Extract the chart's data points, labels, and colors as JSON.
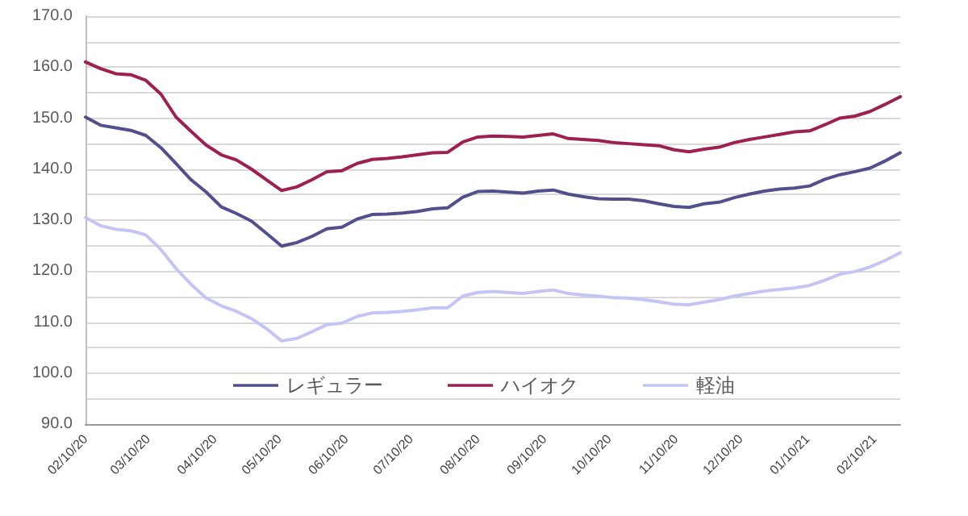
{
  "chart_data": {
    "type": "line",
    "x": [
      "2020-02-10",
      "2020-02-17",
      "2020-02-24",
      "2020-03-02",
      "2020-03-09",
      "2020-03-16",
      "2020-03-23",
      "2020-03-30",
      "2020-04-06",
      "2020-04-13",
      "2020-04-20",
      "2020-04-27",
      "2020-05-04",
      "2020-05-11",
      "2020-05-18",
      "2020-05-25",
      "2020-06-01",
      "2020-06-08",
      "2020-06-15",
      "2020-06-22",
      "2020-06-29",
      "2020-07-06",
      "2020-07-13",
      "2020-07-20",
      "2020-07-27",
      "2020-08-03",
      "2020-08-10",
      "2020-08-17",
      "2020-08-24",
      "2020-08-31",
      "2020-09-07",
      "2020-09-14",
      "2020-09-21",
      "2020-09-28",
      "2020-10-05",
      "2020-10-12",
      "2020-10-19",
      "2020-10-26",
      "2020-11-02",
      "2020-11-09",
      "2020-11-16",
      "2020-11-23",
      "2020-11-30",
      "2020-12-07",
      "2020-12-14",
      "2020-12-21",
      "2020-12-28",
      "2021-01-04",
      "2021-01-11",
      "2021-01-18",
      "2021-01-25",
      "2021-02-01",
      "2021-02-08",
      "2021-02-15",
      "2021-02-22"
    ],
    "series": [
      {
        "name": "レギュラー",
        "color": "#514f8c",
        "values": [
          150.2,
          148.6,
          148.1,
          147.6,
          146.6,
          144.2,
          141.1,
          137.9,
          135.5,
          132.6,
          131.3,
          129.8,
          127.4,
          124.9,
          125.6,
          126.8,
          128.3,
          128.6,
          130.2,
          131.1,
          131.2,
          131.4,
          131.7,
          132.2,
          132.4,
          134.5,
          135.6,
          135.7,
          135.5,
          135.3,
          135.7,
          135.9,
          135.1,
          134.6,
          134.2,
          134.1,
          134.1,
          133.8,
          133.2,
          132.7,
          132.5,
          133.2,
          133.5,
          134.4,
          135.1,
          135.7,
          136.1,
          136.3,
          136.7,
          138.0,
          138.9,
          139.5,
          140.2,
          141.6,
          143.2
        ]
      },
      {
        "name": "ハイオク",
        "color": "#9e1f52",
        "values": [
          161.0,
          159.7,
          158.7,
          158.5,
          157.4,
          154.7,
          150.2,
          147.4,
          144.7,
          142.8,
          141.8,
          140.0,
          137.9,
          135.8,
          136.5,
          137.9,
          139.5,
          139.7,
          141.1,
          141.9,
          142.1,
          142.4,
          142.8,
          143.2,
          143.3,
          145.3,
          146.3,
          146.5,
          146.4,
          146.3,
          146.6,
          146.9,
          146.0,
          145.8,
          145.6,
          145.2,
          145.0,
          144.8,
          144.6,
          143.8,
          143.4,
          143.9,
          144.3,
          145.2,
          145.8,
          146.3,
          146.8,
          147.3,
          147.5,
          148.7,
          150.0,
          150.4,
          151.3,
          152.7,
          154.2
        ]
      },
      {
        "name": "軽油",
        "color": "#c4c4f5",
        "values": [
          130.5,
          128.9,
          128.2,
          127.9,
          127.1,
          124.2,
          120.5,
          117.4,
          114.7,
          113.2,
          112.1,
          110.7,
          108.7,
          106.3,
          106.8,
          108.1,
          109.5,
          109.8,
          111.1,
          111.8,
          111.9,
          112.1,
          112.4,
          112.8,
          112.8,
          115.1,
          115.8,
          116.0,
          115.8,
          115.6,
          116.0,
          116.3,
          115.6,
          115.3,
          115.1,
          114.8,
          114.7,
          114.4,
          114.0,
          113.5,
          113.4,
          113.9,
          114.4,
          115.1,
          115.6,
          116.1,
          116.4,
          116.7,
          117.2,
          118.2,
          119.4,
          119.9,
          120.8,
          122.1,
          123.6
        ]
      }
    ],
    "xlim": [
      "2020-02-10",
      "2021-02-22"
    ],
    "xticks": [
      {
        "value": "2020-02-10",
        "label": "02/10/20"
      },
      {
        "value": "2020-03-10",
        "label": "03/10/20"
      },
      {
        "value": "2020-04-10",
        "label": "04/10/20"
      },
      {
        "value": "2020-05-10",
        "label": "05/10/20"
      },
      {
        "value": "2020-06-10",
        "label": "06/10/20"
      },
      {
        "value": "2020-07-10",
        "label": "07/10/20"
      },
      {
        "value": "2020-08-10",
        "label": "08/10/20"
      },
      {
        "value": "2020-09-10",
        "label": "09/10/20"
      },
      {
        "value": "2020-10-10",
        "label": "10/10/20"
      },
      {
        "value": "2020-11-10",
        "label": "11/10/20"
      },
      {
        "value": "2020-12-10",
        "label": "12/10/20"
      },
      {
        "value": "2021-01-10",
        "label": "01/10/21"
      },
      {
        "value": "2021-02-10",
        "label": "02/10/21"
      }
    ],
    "ylim": [
      90,
      170
    ],
    "yticks": [
      {
        "value": 90,
        "label": "90.0"
      },
      {
        "value": 95,
        "label": null
      },
      {
        "value": 100,
        "label": "100.0"
      },
      {
        "value": 105,
        "label": null
      },
      {
        "value": 110,
        "label": "110.0"
      },
      {
        "value": 115,
        "label": null
      },
      {
        "value": 120,
        "label": "120.0"
      },
      {
        "value": 125,
        "label": null
      },
      {
        "value": 130,
        "label": "130.0"
      },
      {
        "value": 135,
        "label": null
      },
      {
        "value": 140,
        "label": "140.0"
      },
      {
        "value": 145,
        "label": null
      },
      {
        "value": 150,
        "label": "150.0"
      },
      {
        "value": 155,
        "label": null
      },
      {
        "value": 160,
        "label": "160.0"
      },
      {
        "value": 165,
        "label": null
      },
      {
        "value": 170,
        "label": "170.0"
      }
    ],
    "grid": "y",
    "legend": "bottom",
    "marker": "none",
    "line_style": "solid"
  }
}
